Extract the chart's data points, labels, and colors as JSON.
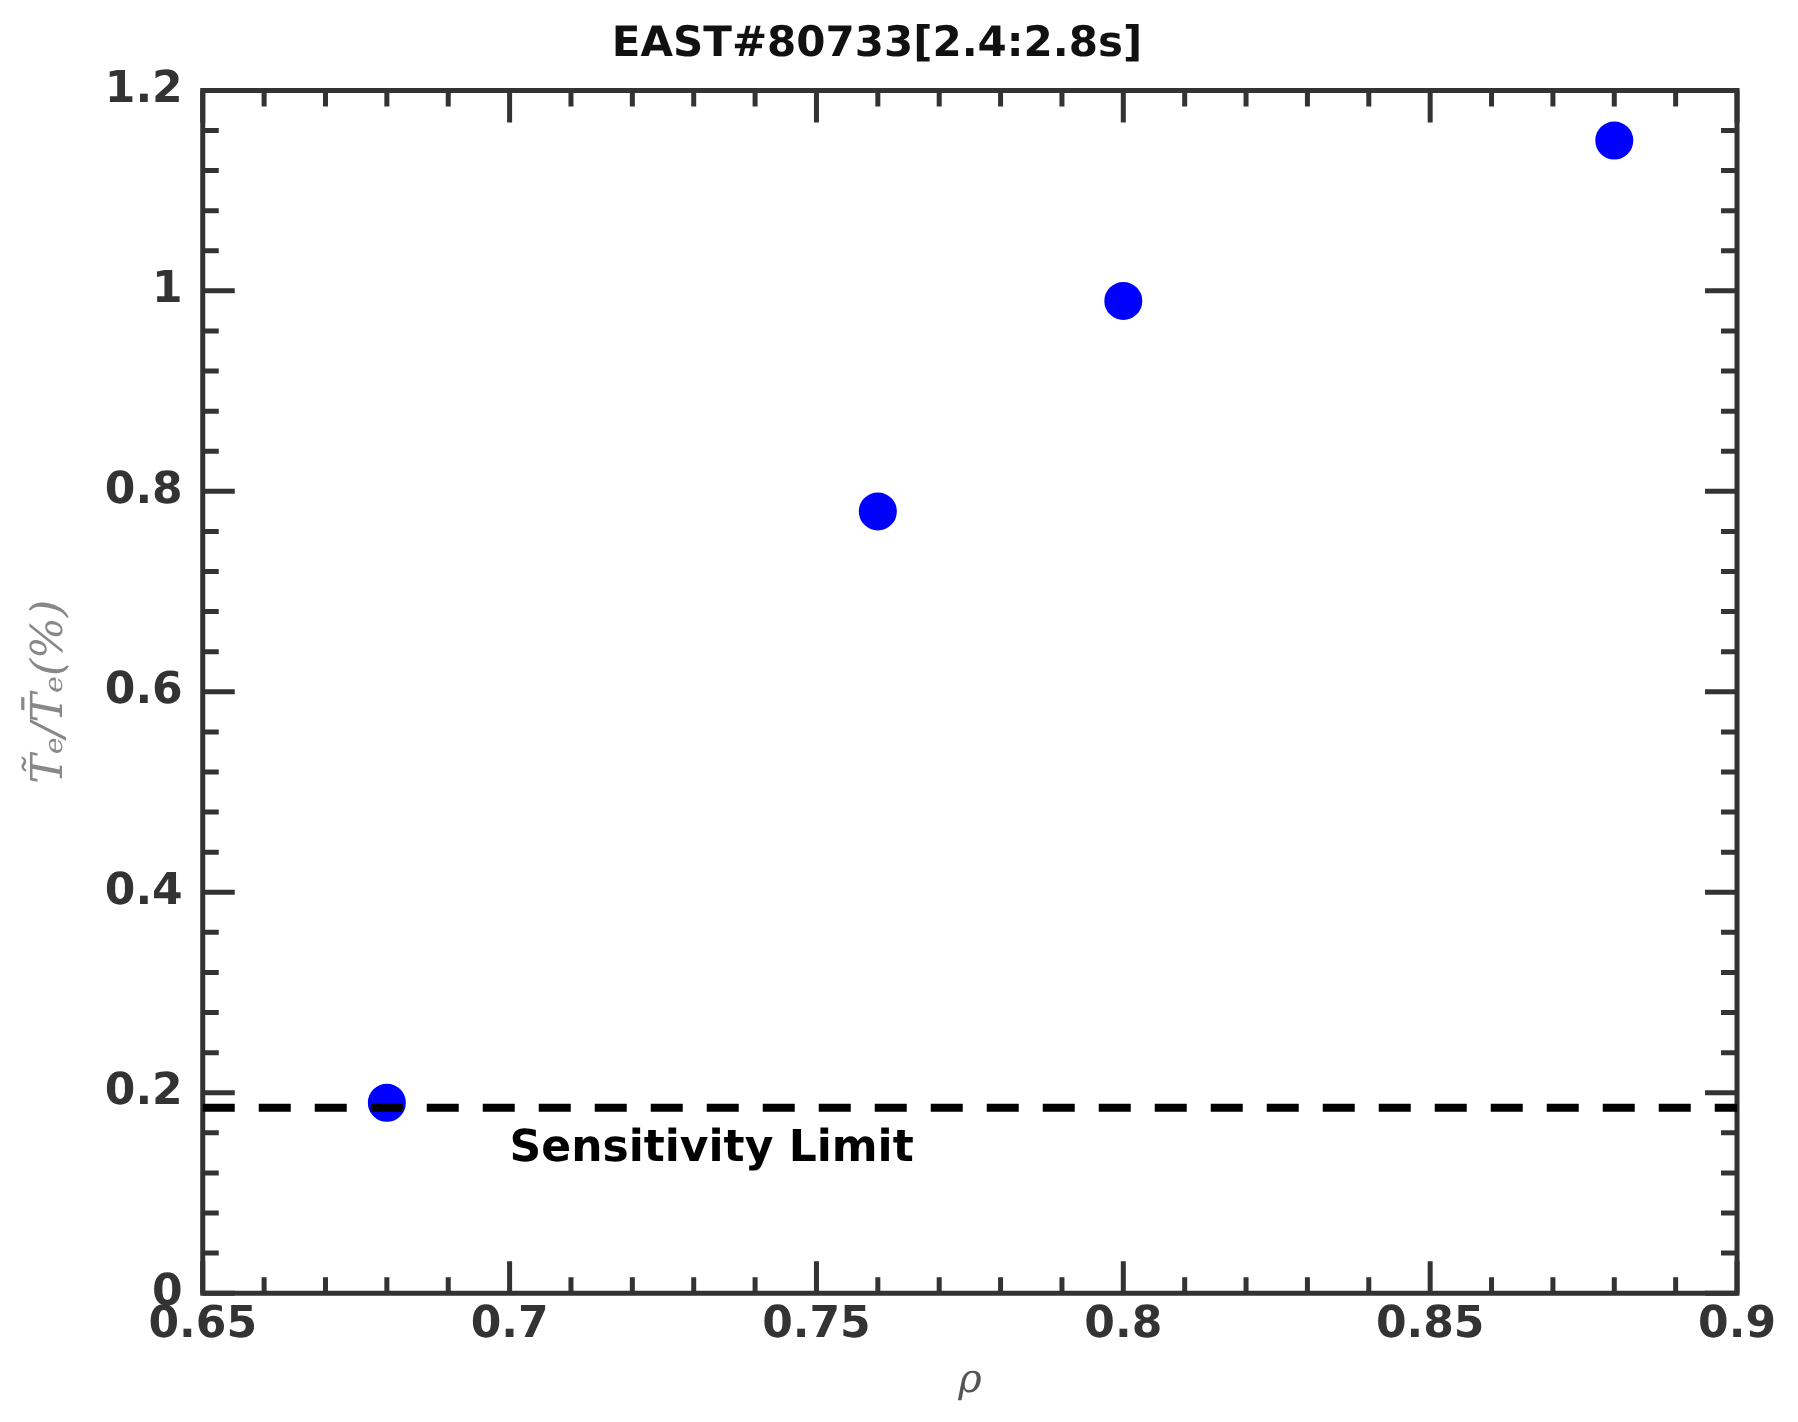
{
  "chart_data": {
    "type": "scatter",
    "title": "EAST#80733[2.4:2.8s]",
    "xlabel": "ρ",
    "ylabel": "T̃ₑ/T̄ₑ(%)",
    "x": [
      0.68,
      0.76,
      0.8,
      0.88
    ],
    "series": [
      {
        "color": "#0000ff",
        "values": [
          0.19,
          0.78,
          0.99,
          1.15
        ]
      }
    ],
    "xlim": [
      0.65,
      0.9
    ],
    "xticks": [
      0.65,
      0.7,
      0.75,
      0.8,
      0.85,
      0.9
    ],
    "ylim": [
      0,
      1.2
    ],
    "yticks": [
      0,
      0.2,
      0.4,
      0.6,
      0.8,
      1,
      1.2
    ],
    "ref_lines": [
      {
        "axis": "y",
        "value": 0.185,
        "label": "Sensitivity Limit",
        "color": "#000000",
        "line_style": "dashed"
      }
    ],
    "marker": "circle",
    "legend": false,
    "grid": false
  }
}
